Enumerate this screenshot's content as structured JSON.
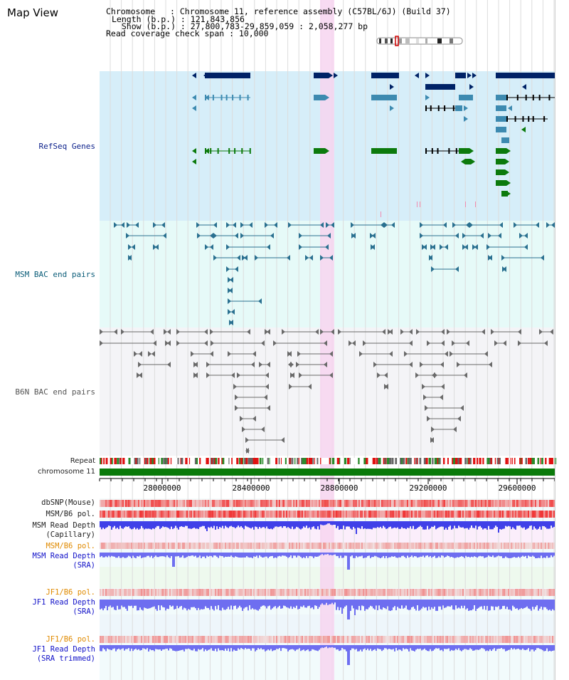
{
  "header": {
    "title": "Map View",
    "chromosome_line": "Chromosome   : Chromosome 11, reference assembly (C57BL/6J) (Build 37)",
    "length_line": "Length (b.p.) : 121,843,856",
    "show_line": "  Show (b.p.) : 27,800,783-29,859,059 : 2,058,277 bp",
    "coverage_line": "Read coverage check span : 10,000"
  },
  "tracks": {
    "refseq": "RefSeq Genes",
    "msm_bac": "MSM BAC end pairs",
    "b6n_bac": "B6N BAC end pairs",
    "repeat": "Repeat",
    "chromosome": "chromosome 11",
    "dbsnp": "dbSNP(Mouse)",
    "msm_b6_pol": "MSM/B6 pol.",
    "msm_depth_cap_1": "MSM Read Depth",
    "msm_depth_cap_2": "(Capillary)",
    "msm_b6_pol_sra": "MSM/B6 pol.",
    "msm_depth_sra_1": "MSM Read Depth",
    "msm_depth_sra_2": "(SRA)",
    "jf1_b6_pol": "JF1/B6 pol.",
    "jf1_depth_sra_1": "JF1 Read Depth",
    "jf1_depth_sra_2": "(SRA)",
    "jf1_b6_pol_trim": "JF1/B6 pol.",
    "jf1_depth_trim_1": "JF1 Read Depth",
    "jf1_depth_trim_2": "(SRA trimmed)"
  },
  "axis": {
    "ticks": [
      "28000000",
      "28400000",
      "28800000",
      "29200000",
      "29600000"
    ]
  },
  "colors": {
    "refseq_bg": "#d6eef9",
    "msm_bg": "#e6faf8",
    "b6n_bg": "#f4f4f7",
    "highlight": "#f7d5f0",
    "gene_navy": "#002266",
    "gene_mid": "#3d8ab0",
    "gene_green": "#0c7a0c",
    "msm_line": "#2a7090",
    "b6n_line": "#6a6a6a",
    "chrom_green": "#0a7a0a",
    "depth_blue": "#4040e8",
    "sra_blue": "#6e6ef0",
    "pol_red": "#f05050"
  }
}
